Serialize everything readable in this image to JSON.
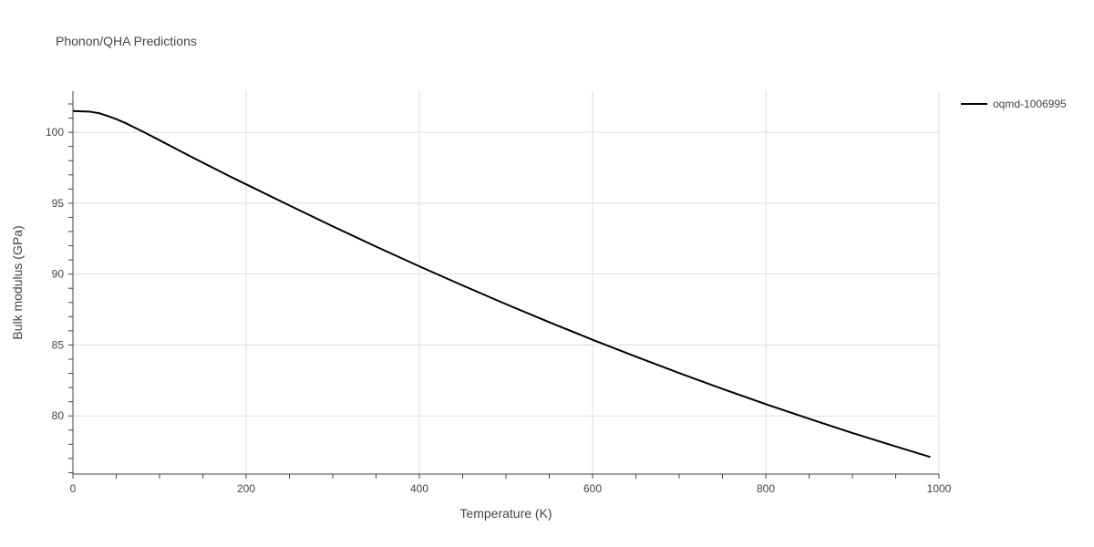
{
  "chart_data": {
    "type": "line",
    "title": "Phonon/QHA Predictions",
    "xlabel": "Temperature (K)",
    "ylabel": "Bulk modulus (GPa)",
    "xlim": [
      0,
      1000
    ],
    "ylim": [
      75.9,
      102.9
    ],
    "x_ticks": [
      0,
      200,
      400,
      600,
      800,
      1000
    ],
    "y_ticks": [
      80,
      85,
      90,
      95,
      100
    ],
    "x_minor_step": 50,
    "y_minor_step": 1,
    "grid": true,
    "legend_position": "top-right",
    "series": [
      {
        "name": "oqmd-1006995",
        "color": "#000000",
        "x": [
          0,
          10,
          20,
          30,
          40,
          50,
          60,
          70,
          80,
          90,
          100,
          120,
          140,
          160,
          180,
          200,
          250,
          300,
          350,
          400,
          450,
          500,
          550,
          600,
          650,
          700,
          750,
          800,
          850,
          900,
          950,
          990
        ],
        "y": [
          101.5,
          101.48,
          101.45,
          101.35,
          101.15,
          100.93,
          100.67,
          100.37,
          100.07,
          99.76,
          99.44,
          98.8,
          98.17,
          97.55,
          96.93,
          96.33,
          94.84,
          93.37,
          91.94,
          90.55,
          89.2,
          87.88,
          86.61,
          85.37,
          84.18,
          83.02,
          81.91,
          80.83,
          79.8,
          78.8,
          77.85,
          77.1
        ]
      }
    ]
  }
}
